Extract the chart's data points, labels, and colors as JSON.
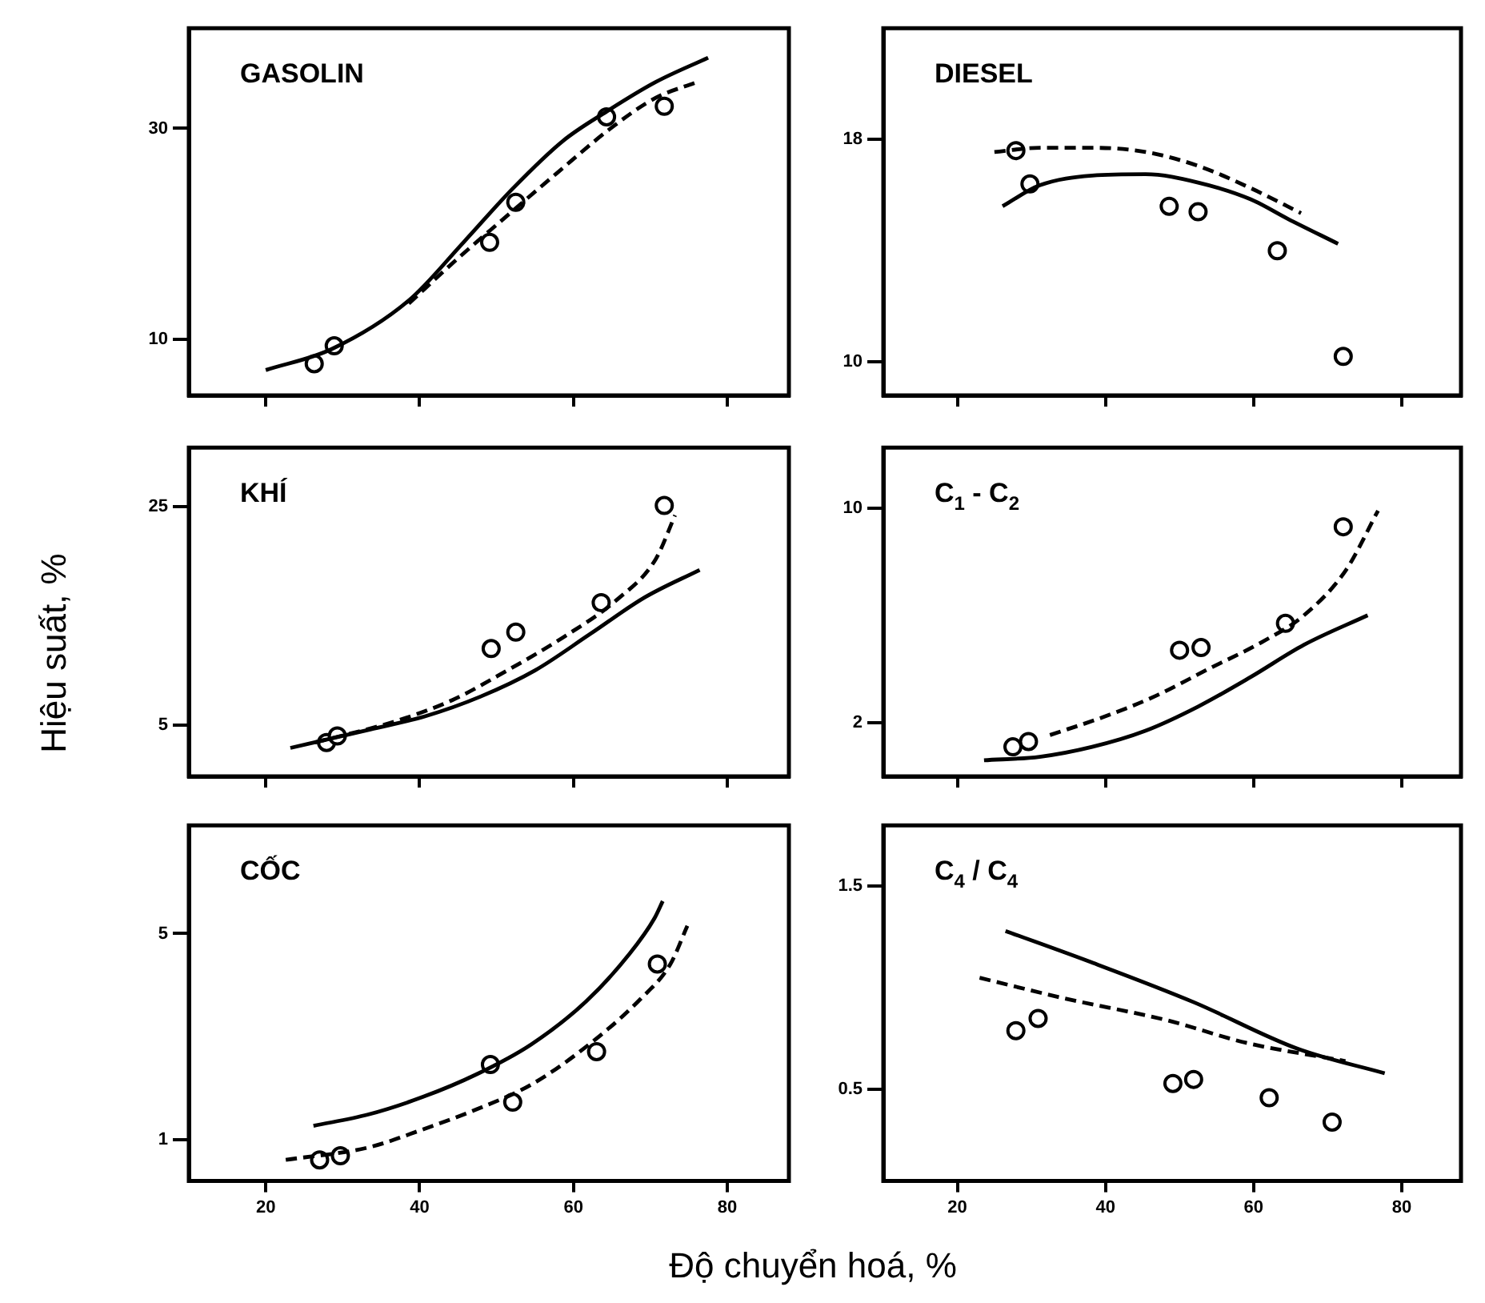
{
  "chart_data": [
    {
      "type": "line",
      "title": "GASOLIN",
      "xlim": [
        10,
        88
      ],
      "xticks": [
        20,
        40,
        60,
        80
      ],
      "ylim": [
        4.7,
        39.5
      ],
      "yticks": [
        10,
        30
      ],
      "tick_labels": "y",
      "series": [
        {
          "type": "line",
          "line_style": "solid",
          "marker": "none",
          "color": "#000000",
          "x": [
            20,
            28.6,
            38.6,
            45.7,
            52.1,
            58.6,
            64.3,
            70.7,
            77.5
          ],
          "values": [
            7.1,
            9.1,
            13.7,
            19.2,
            24.3,
            28.8,
            31.6,
            34.4,
            36.7
          ]
        },
        {
          "type": "line",
          "line_style": "dashed",
          "marker": "none",
          "color": "#000000",
          "x": [
            38.6,
            45,
            50.7,
            57.9,
            65,
            70.7,
            76.1
          ],
          "values": [
            13.4,
            17.7,
            21.3,
            25.8,
            30.1,
            32.9,
            34.4
          ]
        },
        {
          "type": "scatter",
          "marker": "circle",
          "color": "#000000",
          "x": [
            26.3,
            28.9,
            49.1,
            52.5,
            64.3,
            71.8
          ],
          "values": [
            7.7,
            9.4,
            19.2,
            23,
            31.1,
            32.1
          ]
        }
      ]
    },
    {
      "type": "line",
      "title": "DIESEL",
      "xlim": [
        10,
        88
      ],
      "xticks": [
        20,
        40,
        60,
        80
      ],
      "ylim": [
        8.8,
        22
      ],
      "yticks": [
        10,
        18
      ],
      "tick_labels": "y",
      "series": [
        {
          "type": "line",
          "line_style": "solid",
          "marker": "none",
          "color": "#000000",
          "x": [
            26.1,
            31.1,
            38.2,
            45.4,
            52.5,
            59.6,
            64.6,
            71.4
          ],
          "values": [
            15.6,
            16.35,
            16.7,
            16.75,
            16.45,
            15.85,
            15.15,
            14.25
          ]
        },
        {
          "type": "line",
          "line_style": "dashed",
          "marker": "none",
          "color": "#000000",
          "x": [
            25,
            31.1,
            38.2,
            45.4,
            52.5,
            59.6,
            66.4
          ],
          "values": [
            17.55,
            17.7,
            17.7,
            17.55,
            17.05,
            16.25,
            15.35
          ]
        },
        {
          "type": "scatter",
          "marker": "circle",
          "color": "#000000",
          "x": [
            27.9,
            29.8,
            48.6,
            52.5,
            63.2,
            72.1
          ],
          "values": [
            17.6,
            16.4,
            15.6,
            15.4,
            14,
            10.2
          ]
        }
      ]
    },
    {
      "type": "line",
      "title": "KHÍ",
      "ylabel": "Hiệu suất, %",
      "xlim": [
        10,
        88
      ],
      "xticks": [
        20,
        40,
        60,
        80
      ],
      "ylim": [
        0.3,
        30.4
      ],
      "yticks": [
        5,
        25
      ],
      "tick_labels": "y",
      "series": [
        {
          "type": "line",
          "line_style": "solid",
          "marker": "none",
          "color": "#000000",
          "x": [
            23.2,
            33.6,
            40.7,
            47.9,
            55,
            62.1,
            69.3,
            76.4
          ],
          "values": [
            2.9,
            4.6,
            5.8,
            7.6,
            10,
            13.3,
            16.7,
            19.2
          ]
        },
        {
          "type": "line",
          "line_style": "dashed",
          "marker": "none",
          "color": "#000000",
          "x": [
            26.4,
            37.1,
            44.3,
            51.4,
            58.6,
            65.7,
            70.7,
            73.2
          ],
          "values": [
            3.4,
            5.4,
            7.3,
            10,
            13,
            16.5,
            20.2,
            24.2
          ]
        },
        {
          "type": "scatter",
          "marker": "circle",
          "color": "#000000",
          "x": [
            27.9,
            29.3,
            49.3,
            52.5,
            63.6,
            71.8
          ],
          "values": [
            3.4,
            4,
            12,
            13.5,
            16.2,
            25.1
          ]
        }
      ]
    },
    {
      "type": "line",
      "title": "C$_{1}$ - C$_{2}$",
      "xlim": [
        10,
        88
      ],
      "xticks": [
        20,
        40,
        60,
        80
      ],
      "ylim": [
        0,
        12.25
      ],
      "yticks": [
        2,
        10
      ],
      "tick_labels": "y",
      "series": [
        {
          "type": "line",
          "line_style": "solid",
          "marker": "none",
          "color": "#000000",
          "x": [
            23.6,
            31.1,
            38.2,
            45.4,
            52.5,
            59.6,
            66.8,
            75.4
          ],
          "values": [
            0.6,
            0.73,
            1.1,
            1.7,
            2.6,
            3.7,
            4.9,
            6
          ]
        },
        {
          "type": "line",
          "line_style": "dashed",
          "marker": "none",
          "color": "#000000",
          "x": [
            32.5,
            39.6,
            46.8,
            53.9,
            61.1,
            66.8,
            72.5,
            76.8
          ],
          "values": [
            1.54,
            2.2,
            3,
            4,
            5,
            6,
            7.7,
            9.9
          ]
        },
        {
          "type": "scatter",
          "marker": "circle",
          "color": "#000000",
          "x": [
            27.5,
            29.6,
            50,
            52.9,
            64.3,
            72.1
          ],
          "values": [
            1.1,
            1.3,
            4.7,
            4.8,
            5.7,
            9.3
          ]
        }
      ]
    },
    {
      "type": "line",
      "title": "CỐC",
      "xlabel": "Độ chuyển hoá, %",
      "xlim": [
        10,
        88
      ],
      "xticks": [
        20,
        40,
        60,
        80
      ],
      "ylim": [
        0.2,
        7.1
      ],
      "yticks": [
        1,
        5
      ],
      "series": [
        {
          "type": "line",
          "line_style": "solid",
          "marker": "none",
          "color": "#000000",
          "x": [
            26.2,
            33.3,
            40.4,
            47.4,
            54.5,
            61.6,
            67.3,
            70.5,
            71.6
          ],
          "values": [
            1.27,
            1.49,
            1.83,
            2.27,
            2.85,
            3.68,
            4.61,
            5.29,
            5.63
          ]
        },
        {
          "type": "line",
          "line_style": "dashed",
          "marker": "none",
          "color": "#000000",
          "x": [
            22.6,
            33.3,
            40.4,
            47.4,
            54.5,
            61.6,
            68.7,
            72.6,
            74.8
          ],
          "values": [
            0.61,
            0.85,
            1.2,
            1.59,
            2.07,
            2.8,
            3.73,
            4.41,
            5.15
          ]
        },
        {
          "type": "scatter",
          "marker": "circle",
          "color": "#000000",
          "x": [
            27,
            29.7,
            49.2,
            52.1,
            63,
            70.9
          ],
          "values": [
            0.61,
            0.69,
            2.46,
            1.73,
            2.71,
            4.41
          ]
        }
      ]
    },
    {
      "type": "line",
      "title": "C$_{4}$ / C$_{4}$",
      "xlim": [
        10,
        88
      ],
      "xticks": [
        20,
        40,
        60,
        80
      ],
      "ylim": [
        0.05,
        1.8
      ],
      "yticks": [
        0.5,
        1.5
      ],
      "series": [
        {
          "type": "line",
          "line_style": "solid",
          "marker": "none",
          "color": "#000000",
          "x": [
            26.5,
            37.8,
            51.9,
            66,
            77.7
          ],
          "values": [
            1.28,
            1.13,
            0.93,
            0.7,
            0.58
          ]
        },
        {
          "type": "line",
          "line_style": "dashed",
          "marker": "none",
          "color": "#000000",
          "x": [
            23,
            34.3,
            48.4,
            59,
            72.4
          ],
          "values": [
            1.05,
            0.95,
            0.84,
            0.73,
            0.64
          ]
        },
        {
          "type": "scatter",
          "marker": "circle",
          "color": "#000000",
          "x": [
            27.9,
            30.9,
            49.1,
            51.9,
            62.1,
            70.6
          ],
          "values": [
            0.79,
            0.85,
            0.53,
            0.55,
            0.46,
            0.34
          ]
        }
      ]
    }
  ]
}
